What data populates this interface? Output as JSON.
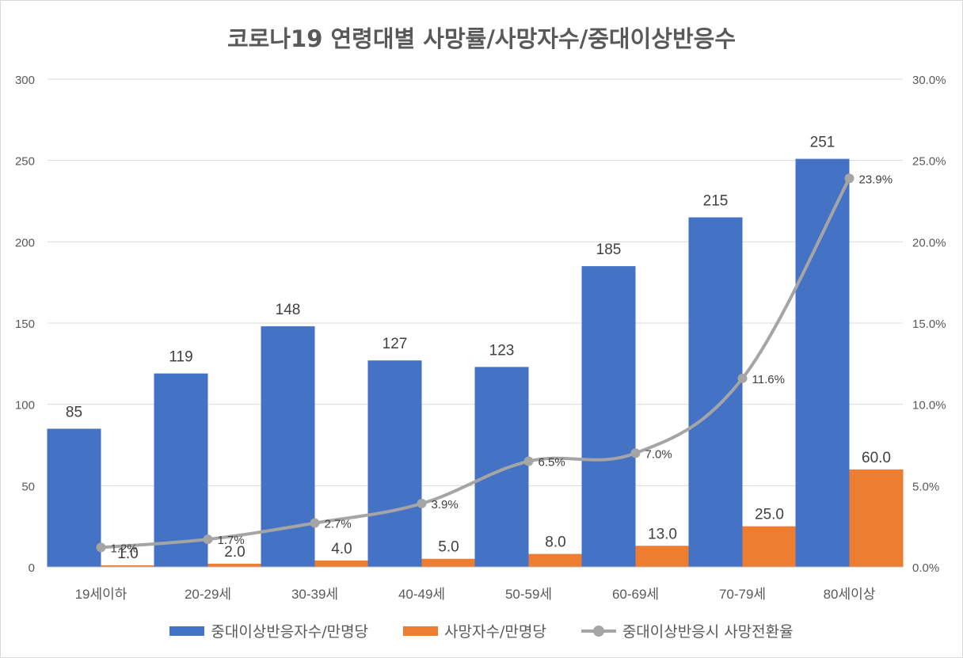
{
  "chart_data": {
    "type": "bar",
    "title": "코로나19 연령대별 사망률/사망자수/중대이상반응수",
    "categories": [
      "19세이하",
      "20-29세",
      "30-39세",
      "40-49세",
      "50-59세",
      "60-69세",
      "70-79세",
      "80세이상"
    ],
    "series": [
      {
        "name": "중대이상반응자수/만명당",
        "type": "bar",
        "axis": "left",
        "color": "#4472c4",
        "values": [
          85,
          119,
          148,
          127,
          123,
          185,
          215,
          251
        ],
        "labels": [
          "85",
          "119",
          "148",
          "127",
          "123",
          "185",
          "215",
          "251"
        ]
      },
      {
        "name": "사망자수/만명당",
        "type": "bar",
        "axis": "left",
        "color": "#ed7d31",
        "values": [
          1.0,
          2.0,
          4.0,
          5.0,
          8.0,
          13.0,
          25.0,
          60.0
        ],
        "labels": [
          "1.0",
          "2.0",
          "4.0",
          "5.0",
          "8.0",
          "13.0",
          "25.0",
          "60.0"
        ]
      },
      {
        "name": "중대이상반응시 사망전환율",
        "type": "line",
        "axis": "right",
        "color": "#a5a5a5",
        "values": [
          1.2,
          1.7,
          2.7,
          3.9,
          6.5,
          7.0,
          11.6,
          23.9
        ],
        "labels": [
          "1.2%",
          "1.7%",
          "2.7%",
          "3.9%",
          "6.5%",
          "7.0%",
          "11.6%",
          "23.9%"
        ]
      }
    ],
    "y_left": {
      "min": 0,
      "max": 300,
      "ticks": [
        0,
        50,
        100,
        150,
        200,
        250,
        300
      ],
      "tick_labels": [
        "0",
        "50",
        "100",
        "150",
        "200",
        "250",
        "300"
      ]
    },
    "y_right": {
      "min": 0,
      "max": 30,
      "ticks": [
        0,
        5,
        10,
        15,
        20,
        25,
        30
      ],
      "tick_labels": [
        "0.0%",
        "5.0%",
        "10.0%",
        "15.0%",
        "20.0%",
        "25.0%",
        "30.0%"
      ]
    },
    "grid": true,
    "legend": "bottom"
  },
  "colors": {
    "axis_text": "#595959",
    "grid": "#d9d9d9",
    "label_text": "#404040"
  }
}
